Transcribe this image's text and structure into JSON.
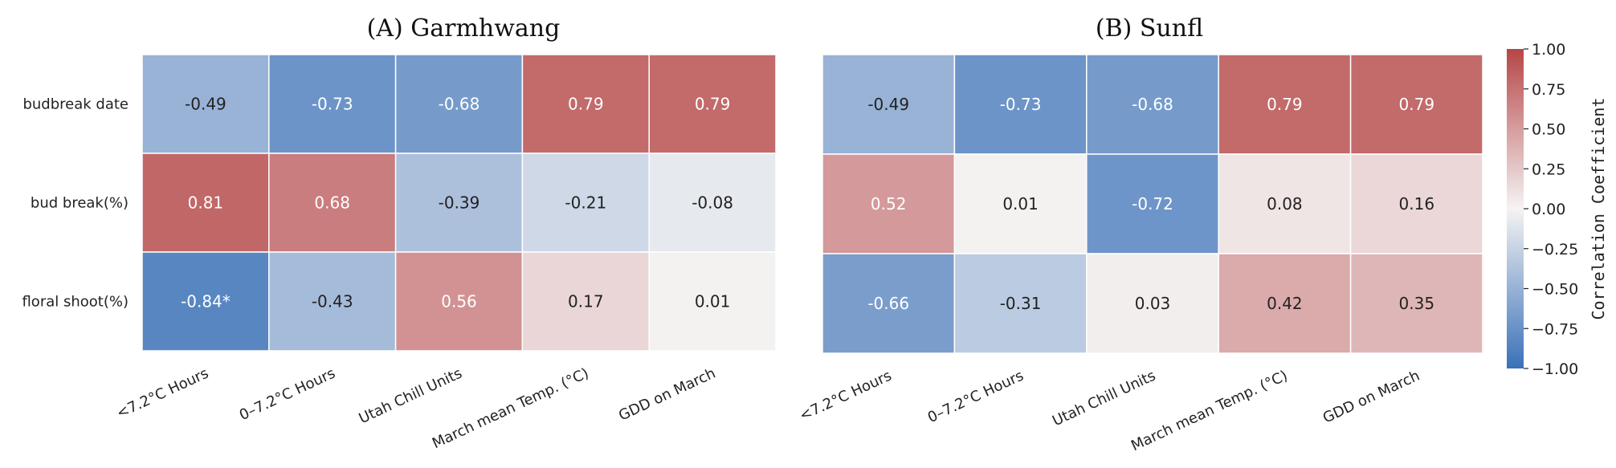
{
  "chart_data": [
    {
      "type": "heatmap",
      "title": "(A) Garmhwang",
      "rows": [
        "budbreak date",
        "bud break(%)",
        "floral shoot(%)"
      ],
      "columns": [
        "<7.2°C Hours",
        "0–7.2°C Hours",
        "Utah Chill Units",
        "March mean Temp. (°C)",
        "GDD on March"
      ],
      "values": [
        [
          -0.49,
          -0.73,
          -0.68,
          0.79,
          0.79
        ],
        [
          0.81,
          0.68,
          -0.39,
          -0.21,
          -0.08
        ],
        [
          -0.84,
          -0.43,
          0.56,
          0.17,
          0.01
        ]
      ],
      "labels": [
        [
          "-0.49",
          "-0.73",
          "-0.68",
          "0.79",
          "0.79"
        ],
        [
          "0.81",
          "0.68",
          "-0.39",
          "-0.21",
          "-0.08"
        ],
        [
          "-0.84*",
          "-0.43",
          "0.56",
          "0.17",
          "0.01"
        ]
      ]
    },
    {
      "type": "heatmap",
      "title": "(B) Sunfl",
      "rows": [
        "budbreak date",
        "bud break(%)",
        "floral shoot(%)"
      ],
      "columns": [
        "<7.2°C Hours",
        "0–7.2°C Hours",
        "Utah Chill Units",
        "March mean Temp. (°C)",
        "GDD on March"
      ],
      "values": [
        [
          -0.49,
          -0.73,
          -0.68,
          0.79,
          0.79
        ],
        [
          0.52,
          0.01,
          -0.72,
          0.08,
          0.16
        ],
        [
          -0.66,
          -0.31,
          0.03,
          0.42,
          0.35
        ]
      ],
      "labels": [
        [
          "-0.49",
          "-0.73",
          "-0.68",
          "0.79",
          "0.79"
        ],
        [
          "0.52",
          "0.01",
          "-0.72",
          "0.08",
          "0.16"
        ],
        [
          "-0.66",
          "-0.31",
          "0.03",
          "0.42",
          "0.35"
        ]
      ]
    }
  ],
  "colorbar": {
    "label": "Correlation Coefficient",
    "range": [
      -1,
      1
    ],
    "ticks": [
      1.0,
      0.75,
      0.5,
      0.25,
      0.0,
      -0.25,
      -0.5,
      -0.75,
      -1.0
    ],
    "tick_labels": [
      "1.00",
      "0.75",
      "0.50",
      "0.25",
      "0.00",
      "−0.25",
      "−0.50",
      "−0.75",
      "−1.00"
    ],
    "colormap": [
      "#3a71b8",
      "#f5f3f3",
      "#b64647"
    ]
  }
}
